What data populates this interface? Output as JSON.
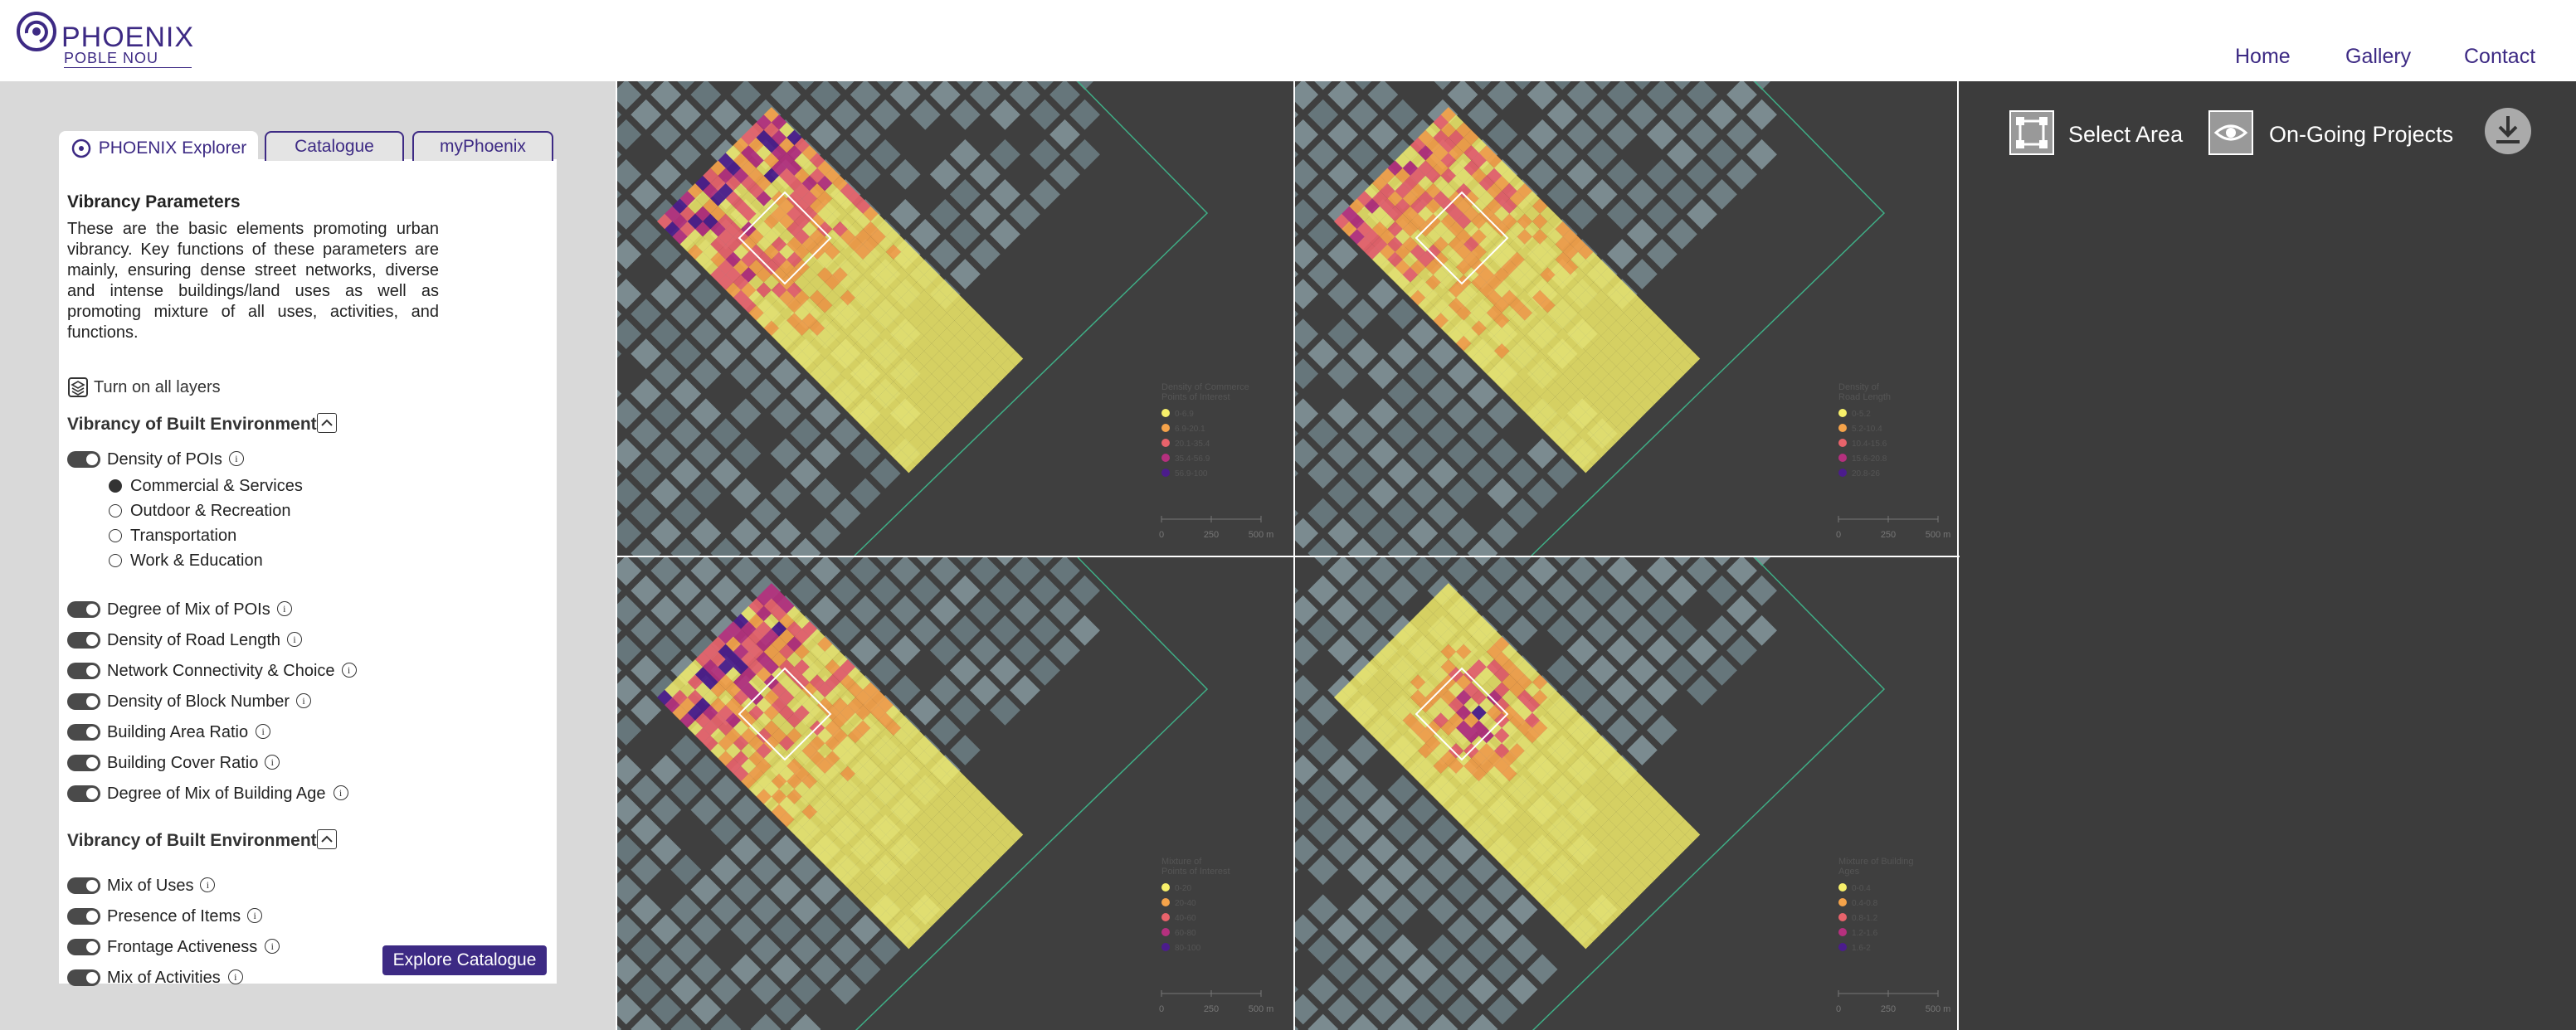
{
  "header": {
    "logo": "PHOENIX",
    "sublogo": "POBLE NOU",
    "nav": [
      "Home",
      "Gallery",
      "Contact"
    ]
  },
  "sidebar": {
    "tabs": [
      "PHOENIX Explorer",
      "Catalogue",
      "myPhoenix"
    ],
    "active_tab": 0,
    "title": "Vibrancy Parameters",
    "description": "These are the basic elements promoting urban vibrancy. Key functions of these parameters are mainly, ensuring dense street networks, diverse and intense buildings/land uses as well as promoting mixture of all uses, activities, and functions.",
    "layers_toggle": "Turn on all layers",
    "groups": [
      {
        "title": "Vibrancy of Built Environment",
        "items": [
          {
            "label": "Density of POIs",
            "options": [
              "Commercial & Services",
              "Outdoor & Recreation",
              "Transportation",
              "Work & Education"
            ],
            "selected": 0
          },
          {
            "label": "Degree of Mix of POIs"
          },
          {
            "label": "Density of Road Length"
          },
          {
            "label": "Network Connectivity & Choice"
          },
          {
            "label": "Density of Block Number"
          },
          {
            "label": "Building Area Ratio"
          },
          {
            "label": "Building Cover Ratio"
          },
          {
            "label": "Degree of Mix of Building Age"
          }
        ]
      },
      {
        "title": "Vibrancy of Built Environment",
        "items": [
          {
            "label": "Mix of Uses"
          },
          {
            "label": "Presence of Items"
          },
          {
            "label": "Frontage Activeness"
          },
          {
            "label": "Mix of Activities"
          }
        ]
      }
    ],
    "button": "Explore Catalogue"
  },
  "toolbar": [
    "Select Area",
    "On-Going Projects"
  ],
  "maps": [
    {
      "legend_title": [
        "Density of Commerce",
        "Points of Interest"
      ],
      "legend": [
        {
          "label": "0-6.9",
          "color": "#f7f06a"
        },
        {
          "label": "6.9-20.1",
          "color": "#f5a34a"
        },
        {
          "label": "20.1-35.4",
          "color": "#e8636b"
        },
        {
          "label": "35.4-56.9",
          "color": "#b5307e"
        },
        {
          "label": "56.9-100",
          "color": "#4b1c8c"
        }
      ],
      "scale": [
        "0",
        "250",
        "500 m"
      ]
    },
    {
      "legend_title": [
        "Density of",
        "Road Length"
      ],
      "legend": [
        {
          "label": "0-5.2",
          "color": "#f7f06a"
        },
        {
          "label": "5.2-10.4",
          "color": "#f5a34a"
        },
        {
          "label": "10.4-15.6",
          "color": "#e8636b"
        },
        {
          "label": "15.6-20.8",
          "color": "#b5307e"
        },
        {
          "label": "20.8-26",
          "color": "#4b1c8c"
        }
      ],
      "scale": [
        "0",
        "250",
        "500 m"
      ]
    },
    {
      "legend_title": [
        "Mixture of",
        "Points of Interest"
      ],
      "legend": [
        {
          "label": "0-20",
          "color": "#f7f06a"
        },
        {
          "label": "20-40",
          "color": "#f5a34a"
        },
        {
          "label": "40-60",
          "color": "#e8636b"
        },
        {
          "label": "60-80",
          "color": "#b5307e"
        },
        {
          "label": "80-100",
          "color": "#4b1c8c"
        }
      ],
      "scale": [
        "0",
        "250",
        "500 m"
      ]
    },
    {
      "legend_title": [
        "Mixture of Building",
        "Ages"
      ],
      "legend": [
        {
          "label": "0-0.4",
          "color": "#f7f06a"
        },
        {
          "label": "0.4-0.8",
          "color": "#f5a34a"
        },
        {
          "label": "0.8-1.2",
          "color": "#e8636b"
        },
        {
          "label": "1.2-1.6",
          "color": "#b5307e"
        },
        {
          "label": "1.6-2",
          "color": "#4b1c8c"
        }
      ],
      "scale": [
        "0",
        "250",
        "500 m"
      ]
    }
  ]
}
